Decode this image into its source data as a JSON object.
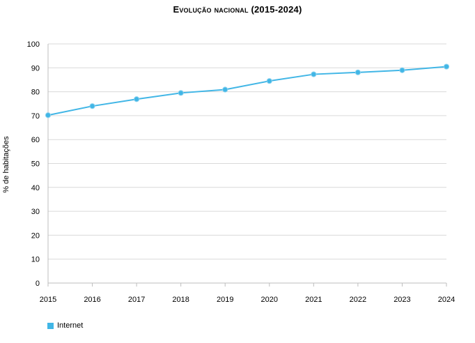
{
  "chart_data": {
    "type": "line",
    "title": "Evolução nacional (2015-2024)",
    "xlabel": "",
    "ylabel": "% de habitações",
    "x": [
      2015,
      2016,
      2017,
      2018,
      2019,
      2020,
      2021,
      2022,
      2023,
      2024
    ],
    "ylim": [
      0,
      100
    ],
    "yticks": [
      0,
      10,
      20,
      30,
      40,
      50,
      60,
      70,
      80,
      90,
      100
    ],
    "grid": true,
    "legend_position": "bottom-left",
    "series": [
      {
        "name": "Internet",
        "color": "#41b6e6",
        "values": [
          70.2,
          74.0,
          76.9,
          79.5,
          80.9,
          84.5,
          87.3,
          88.1,
          89.0,
          90.5
        ]
      }
    ]
  }
}
